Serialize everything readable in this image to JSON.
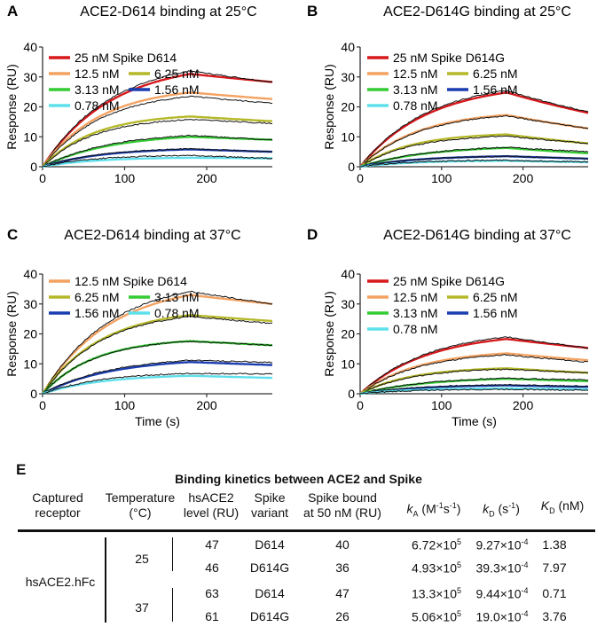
{
  "colors": {
    "25 nM": "#d7191c",
    "12.5 nM": "#f4a261",
    "6.25 nM": "#b5b828",
    "3.13 nM": "#33cc33",
    "1.56 nM": "#1a3db0",
    "0.78 nM": "#5ee0ec",
    "raw": "#111111"
  },
  "chart_data": [
    {
      "id": "A",
      "type": "line",
      "letter": "A",
      "title": "ACE2-D614 binding at 25°C",
      "xlabel": "Time (s)",
      "ylabel": "Response (RU)",
      "xlim": [
        0,
        280
      ],
      "ylim": [
        0,
        40
      ],
      "xticks": [
        0,
        100,
        200
      ],
      "yticks": [
        0,
        10,
        20,
        30,
        40
      ],
      "legend": [
        {
          "label": "25 nM Spike D614",
          "key": "25 nM"
        },
        {
          "label": "12.5 nM",
          "key": "12.5 nM"
        },
        {
          "label": "6.25 nM",
          "key": "6.25 nM"
        },
        {
          "label": "3.13 nM",
          "key": "3.13 nM"
        },
        {
          "label": "1.56 nM",
          "key": "1.56 nM"
        },
        {
          "label": "0.78 nM",
          "key": "0.78 nM"
        }
      ],
      "legend_position": "top-left",
      "series": [
        {
          "name": "25 nM",
          "peak": 31,
          "end": 28.3,
          "raw_peak": 32,
          "raw_end": 28.3
        },
        {
          "name": "12.5 nM",
          "peak": 24.8,
          "end": 22.6,
          "raw_peak": 23.5,
          "raw_end": 21.2
        },
        {
          "name": "6.25 nM",
          "peak": 16.8,
          "end": 15.2,
          "raw_peak": 15.8,
          "raw_end": 14.5
        },
        {
          "name": "3.13 nM",
          "peak": 10,
          "end": 9,
          "raw_peak": 10.5,
          "raw_end": 9.0
        },
        {
          "name": "1.56 nM",
          "peak": 5.8,
          "end": 5.0,
          "raw_peak": 6.0,
          "raw_end": 5.0
        },
        {
          "name": "0.78 nM",
          "peak": 3.0,
          "end": 2.8,
          "raw_peak": 3.8,
          "raw_end": 2.8
        }
      ],
      "association_end": 180
    },
    {
      "id": "B",
      "type": "line",
      "letter": "B",
      "title": "ACE2-D614G binding at 25°C",
      "xlabel": "Time (s)",
      "ylabel": "Response (RU)",
      "xlim": [
        0,
        280
      ],
      "ylim": [
        0,
        40
      ],
      "xticks": [
        0,
        100,
        200
      ],
      "yticks": [
        0,
        10,
        20,
        30,
        40
      ],
      "legend": [
        {
          "label": "25 nM Spike D614G",
          "key": "25 nM"
        },
        {
          "label": "12.5 nM",
          "key": "12.5 nM"
        },
        {
          "label": "6.25 nM",
          "key": "6.25 nM"
        },
        {
          "label": "3.13 nM",
          "key": "3.13 nM"
        },
        {
          "label": "1.56 nM",
          "key": "1.56 nM"
        },
        {
          "label": "0.78 nM",
          "key": "0.78 nM"
        }
      ],
      "legend_position": "top-left",
      "series": [
        {
          "name": "25 nM",
          "peak": 24.8,
          "end": 18,
          "raw_peak": 25.5,
          "raw_end": 18.3
        },
        {
          "name": "12.5 nM",
          "peak": 17.3,
          "end": 12.8,
          "raw_peak": 17.0,
          "raw_end": 12.8
        },
        {
          "name": "6.25 nM",
          "peak": 10.8,
          "end": 7.8,
          "raw_peak": 10.2,
          "raw_end": 7.8
        },
        {
          "name": "3.13 nM",
          "peak": 6.3,
          "end": 4.5,
          "raw_peak": 6.5,
          "raw_end": 5.0
        },
        {
          "name": "1.56 nM",
          "peak": 3.5,
          "end": 2.7,
          "raw_peak": 3.5,
          "raw_end": 2.7
        },
        {
          "name": "0.78 nM",
          "peak": 2.0,
          "end": 1.5,
          "raw_peak": 2.2,
          "raw_end": 1.6
        }
      ],
      "association_end": 180
    },
    {
      "id": "C",
      "type": "line",
      "letter": "C",
      "title": "ACE2-D614 binding at 37°C",
      "xlabel": "Time (s)",
      "ylabel": "Response (RU)",
      "xlim": [
        0,
        280
      ],
      "ylim": [
        0,
        40
      ],
      "xticks": [
        0,
        100,
        200
      ],
      "yticks": [
        0,
        10,
        20,
        30,
        40
      ],
      "legend": [
        {
          "label": "12.5 nM Spike D614",
          "key": "12.5 nM"
        },
        {
          "label": "6.25 nM",
          "key": "6.25 nM"
        },
        {
          "label": "3.13 nM",
          "key": "3.13 nM"
        },
        {
          "label": "1.56 nM",
          "key": "1.56 nM"
        },
        {
          "label": "0.78 nM",
          "key": "0.78 nM"
        }
      ],
      "legend_position": "top-left",
      "series": [
        {
          "name": "12.5 nM",
          "peak": 33,
          "end": 30,
          "raw_peak": 34.2,
          "raw_end": 30
        },
        {
          "name": "6.25 nM",
          "peak": 26.3,
          "end": 24.3,
          "raw_peak": 25.8,
          "raw_end": 23.5
        },
        {
          "name": "3.13 nM",
          "peak": 17.6,
          "end": 16.2,
          "raw_peak": 17.5,
          "raw_end": 16.2
        },
        {
          "name": "1.56 nM",
          "peak": 10.6,
          "end": 9.6,
          "raw_peak": 11.2,
          "raw_end": 10.5
        },
        {
          "name": "0.78 nM",
          "peak": 6.0,
          "end": 5.3,
          "raw_peak": 6.8,
          "raw_end": 6.6
        }
      ],
      "association_end": 180
    },
    {
      "id": "D",
      "type": "line",
      "letter": "D",
      "title": "ACE2-D614G binding at 37°C",
      "xlabel": "Time (s)",
      "ylabel": "Response (RU)",
      "xlim": [
        0,
        280
      ],
      "ylim": [
        0,
        40
      ],
      "xticks": [
        0,
        100,
        200
      ],
      "yticks": [
        0,
        10,
        20,
        30,
        40
      ],
      "legend": [
        {
          "label": "25 nM Spike D614G",
          "key": "25 nM"
        },
        {
          "label": "12.5 nM",
          "key": "12.5 nM"
        },
        {
          "label": "6.25 nM",
          "key": "6.25 nM"
        },
        {
          "label": "3.13 nM",
          "key": "3.13 nM"
        },
        {
          "label": "1.56 nM",
          "key": "1.56 nM"
        },
        {
          "label": "0.78 nM",
          "key": "0.78 nM"
        }
      ],
      "legend_position": "top-left",
      "series": [
        {
          "name": "25 nM",
          "peak": 18.3,
          "end": 15.3,
          "raw_peak": 19.0,
          "raw_end": 15.3
        },
        {
          "name": "12.5 nM",
          "peak": 13.5,
          "end": 11.2,
          "raw_peak": 13.0,
          "raw_end": 10.6
        },
        {
          "name": "6.25 nM",
          "peak": 8.5,
          "end": 7.0,
          "raw_peak": 8.2,
          "raw_end": 7.0
        },
        {
          "name": "3.13 nM",
          "peak": 5.0,
          "end": 4.2,
          "raw_peak": 5.2,
          "raw_end": 4.6
        },
        {
          "name": "1.56 nM",
          "peak": 2.8,
          "end": 2.3,
          "raw_peak": 3.0,
          "raw_end": 2.5
        },
        {
          "name": "0.78 nM",
          "peak": 1.8,
          "end": 1.5,
          "raw_peak": 1.5,
          "raw_end": 1.2
        }
      ],
      "association_end": 180
    }
  ],
  "table": {
    "letter": "E",
    "title": "Binding kinetics between ACE2 and Spike",
    "headers": [
      {
        "line1": "Captured",
        "line2": "receptor"
      },
      {
        "line1": "Temperature",
        "line2": "(°C)"
      },
      {
        "line1": "hsACE2",
        "line2": "level (RU)"
      },
      {
        "line1": "Spike",
        "line2": "variant"
      },
      {
        "line1": "Spike bound",
        "line2": "at 50 nM (RU)"
      },
      {
        "sym": "k",
        "sub": "A",
        "rest": " (M",
        "sup1": "-1",
        "mid": "s",
        "sup2": "-1",
        "close": ")"
      },
      {
        "sym": "k",
        "sub": "D",
        "rest": " (s",
        "sup1": "-1",
        "close": ")"
      },
      {
        "sym": "K",
        "sub": "D",
        "rest": " (nM)"
      }
    ],
    "receptor": "hsACE2.hFc",
    "temperatures": [
      "25",
      "37"
    ],
    "rows": [
      {
        "level": "47",
        "variant": "D614",
        "bound": "40",
        "ka_base": "6.72×10",
        "ka_exp": "5",
        "kd_base": "9.27×10",
        "kd_exp": "-4",
        "KD": "1.38"
      },
      {
        "level": "46",
        "variant": "D614G",
        "bound": "36",
        "ka_base": "4.93×10",
        "ka_exp": "5",
        "kd_base": "39.3×10",
        "kd_exp": "-4",
        "KD": "7.97"
      },
      {
        "level": "63",
        "variant": "D614",
        "bound": "47",
        "ka_base": "13.3×10",
        "ka_exp": "5",
        "kd_base": "9.44×10",
        "kd_exp": "-4",
        "KD": "0.71"
      },
      {
        "level": "61",
        "variant": "D614G",
        "bound": "26",
        "ka_base": "5.06×10",
        "ka_exp": "5",
        "kd_base": "19.0×10",
        "kd_exp": "-4",
        "KD": "3.76"
      }
    ]
  }
}
